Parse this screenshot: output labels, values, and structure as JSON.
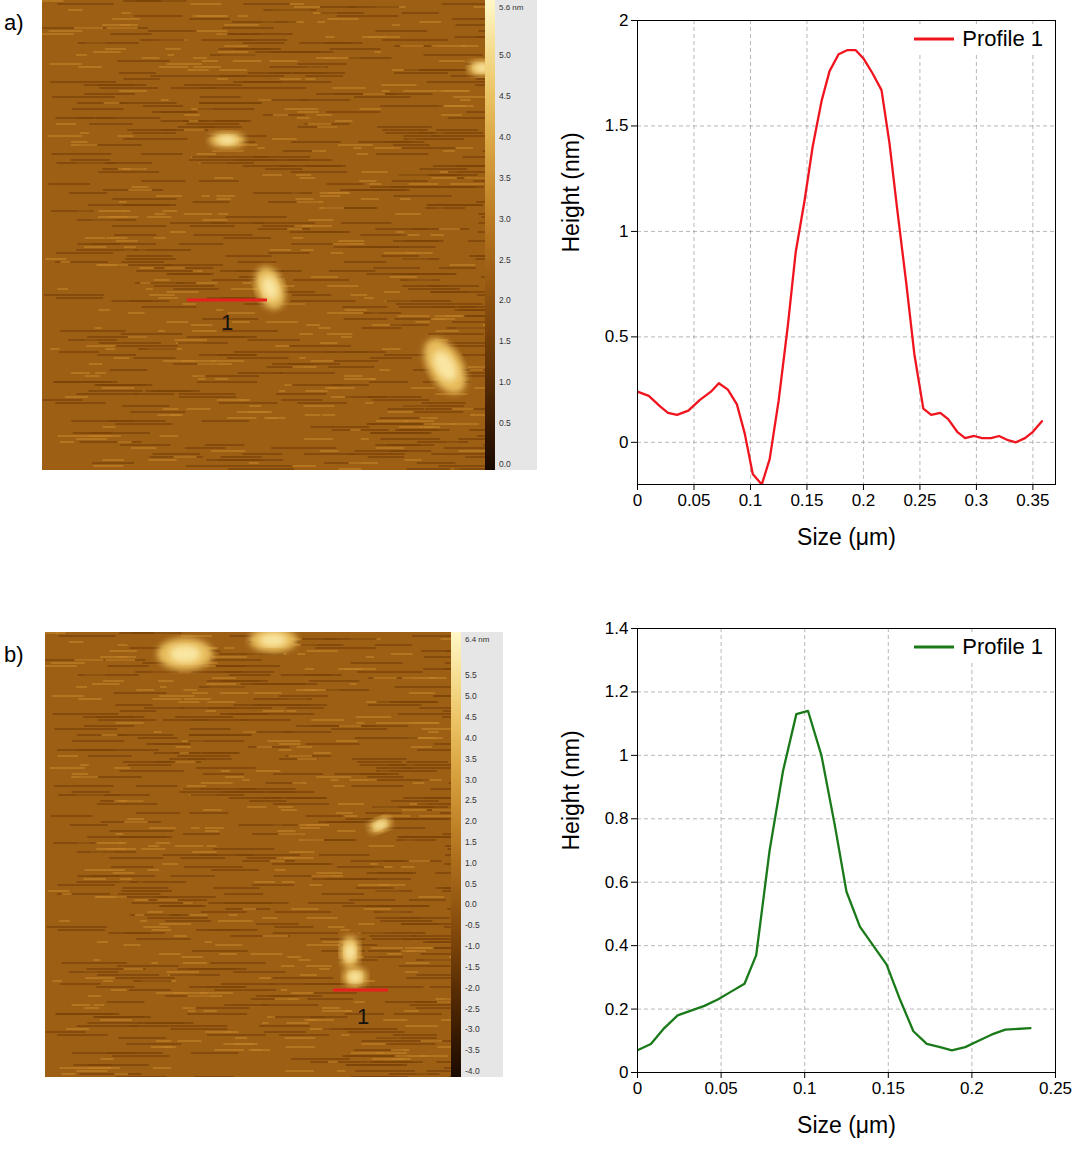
{
  "chart_data": [
    {
      "type": "image",
      "panel": "a)",
      "colorbar_title": "5.6 nm",
      "colorbar_range": [
        0,
        5.6
      ],
      "colorbar_ticks": [
        {
          "value": 0,
          "label": "0.0"
        },
        {
          "value": 0.5,
          "label": "0.5"
        },
        {
          "value": 1,
          "label": "1.0"
        },
        {
          "value": 1.5,
          "label": "1.5"
        },
        {
          "value": 2,
          "label": "2.0"
        },
        {
          "value": 2.5,
          "label": "2.5"
        },
        {
          "value": 3,
          "label": "3.0"
        },
        {
          "value": 3.5,
          "label": "3.5"
        },
        {
          "value": 4,
          "label": "4.0"
        },
        {
          "value": 4.5,
          "label": "4.5"
        },
        {
          "value": 5,
          "label": "5.0"
        }
      ],
      "profile_label": "1",
      "color": "#e8201e"
    },
    {
      "type": "line",
      "x_label": "Size (μm)",
      "y_label": "Height (nm)",
      "x": [
        0,
        0.01,
        0.02,
        0.027,
        0.035,
        0.045,
        0.055,
        0.065,
        0.072,
        0.08,
        0.088,
        0.095,
        0.102,
        0.11,
        0.117,
        0.125,
        0.133,
        0.14,
        0.148,
        0.155,
        0.163,
        0.17,
        0.178,
        0.186,
        0.193,
        0.2,
        0.208,
        0.216,
        0.223,
        0.23,
        0.238,
        0.245,
        0.253,
        0.26,
        0.268,
        0.275,
        0.283,
        0.29,
        0.298,
        0.305,
        0.313,
        0.32,
        0.328,
        0.335,
        0.343,
        0.35,
        0.358
      ],
      "series": [
        {
          "name": "Profile 1",
          "color": "#f0141e",
          "values": [
            0.24,
            0.22,
            0.17,
            0.14,
            0.13,
            0.15,
            0.2,
            0.24,
            0.28,
            0.25,
            0.18,
            0.04,
            -0.15,
            -0.2,
            -0.08,
            0.2,
            0.55,
            0.9,
            1.15,
            1.4,
            1.62,
            1.76,
            1.84,
            1.86,
            1.86,
            1.82,
            1.75,
            1.67,
            1.42,
            1.1,
            0.75,
            0.42,
            0.16,
            0.13,
            0.14,
            0.11,
            0.05,
            0.02,
            0.03,
            0.02,
            0.02,
            0.03,
            0.01,
            0.0,
            0.02,
            0.05,
            0.1
          ]
        }
      ],
      "xlim": [
        0,
        0.37
      ],
      "xticks": [
        0,
        0.05,
        0.1,
        0.15,
        0.2,
        0.25,
        0.3,
        0.35
      ],
      "ylim": [
        -0.2,
        2
      ],
      "yticks": [
        0,
        0.5,
        1,
        1.5,
        2
      ],
      "grid": true,
      "legend": "upper right"
    },
    {
      "type": "image",
      "panel": "b)",
      "colorbar_title": "6.4 nm",
      "colorbar_range": [
        -4.0,
        6.4
      ],
      "colorbar_ticks": [
        {
          "value": -4,
          "label": "-4.0"
        },
        {
          "value": -3.5,
          "label": "-3.5"
        },
        {
          "value": -3,
          "label": "-3.0"
        },
        {
          "value": -2.5,
          "label": "-2.5"
        },
        {
          "value": -2,
          "label": "-2.0"
        },
        {
          "value": -1.5,
          "label": "-1.5"
        },
        {
          "value": -1,
          "label": "-1.0"
        },
        {
          "value": -0.5,
          "label": "-0.5"
        },
        {
          "value": 0,
          "label": "0.0"
        },
        {
          "value": 0.5,
          "label": "0.5"
        },
        {
          "value": 1,
          "label": "1.0"
        },
        {
          "value": 1.5,
          "label": "1.5"
        },
        {
          "value": 2,
          "label": "2.0"
        },
        {
          "value": 2.5,
          "label": "2.5"
        },
        {
          "value": 3,
          "label": "3.0"
        },
        {
          "value": 3.5,
          "label": "3.5"
        },
        {
          "value": 4,
          "label": "4.0"
        },
        {
          "value": 4.5,
          "label": "4.5"
        },
        {
          "value": 5,
          "label": "5.0"
        },
        {
          "value": 5.5,
          "label": "5.5"
        }
      ],
      "profile_label": "1",
      "color": "#e8201e"
    },
    {
      "type": "line",
      "x_label": "Size (μm)",
      "y_label": "Height (nm)",
      "x": [
        0,
        0.008,
        0.016,
        0.024,
        0.032,
        0.04,
        0.048,
        0.056,
        0.064,
        0.071,
        0.079,
        0.087,
        0.095,
        0.102,
        0.11,
        0.118,
        0.125,
        0.133,
        0.141,
        0.149,
        0.157,
        0.165,
        0.173,
        0.181,
        0.188,
        0.196,
        0.204,
        0.212,
        0.22,
        0.235
      ],
      "series": [
        {
          "name": "Profile 1",
          "color": "#1a7a1a",
          "values": [
            0.07,
            0.09,
            0.14,
            0.18,
            0.195,
            0.21,
            0.23,
            0.255,
            0.28,
            0.37,
            0.7,
            0.95,
            1.13,
            1.14,
            1.0,
            0.78,
            0.57,
            0.46,
            0.4,
            0.34,
            0.23,
            0.13,
            0.09,
            0.08,
            0.07,
            0.08,
            0.1,
            0.12,
            0.135,
            0.14
          ]
        }
      ],
      "xlim": [
        0,
        0.25
      ],
      "xticks": [
        0,
        0.05,
        0.1,
        0.15,
        0.2,
        0.25
      ],
      "ylim": [
        0,
        1.4
      ],
      "yticks": [
        0,
        0.2,
        0.4,
        0.6,
        0.8,
        1,
        1.2,
        1.4
      ],
      "grid": true,
      "legend": "upper right"
    }
  ]
}
